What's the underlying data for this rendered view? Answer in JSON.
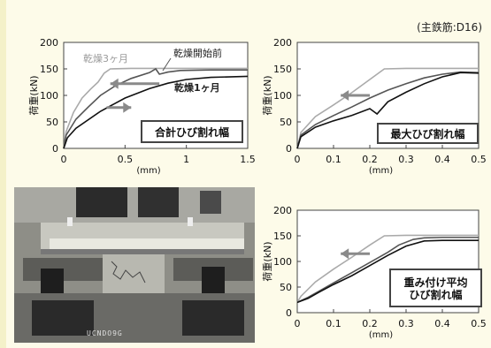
{
  "note": "(主鉄筋:D16)",
  "photo": {
    "caption": "UCNDO9G"
  },
  "colors": {
    "black": "#111111",
    "mid": "#555555",
    "light": "#aaaaaa",
    "arrow": "#8a8a8a",
    "box": "#444444"
  },
  "chart_data": [
    {
      "type": "line",
      "title": "合計ひび割れ幅",
      "xlabel": "(mm)",
      "ylabel": "荷重(kN)",
      "xlim": [
        0,
        1.5
      ],
      "ylim": [
        0,
        200
      ],
      "xticks": [
        "0",
        "0.5",
        "1",
        "1.5"
      ],
      "yticks": [
        "0",
        "50",
        "100",
        "150",
        "200"
      ],
      "series": [
        {
          "name": "乾燥3ヶ月",
          "color": "light",
          "x": [
            0,
            0.02,
            0.08,
            0.15,
            0.22,
            0.28,
            0.33,
            0.38,
            0.55,
            0.9,
            1.2,
            1.5
          ],
          "y": [
            0,
            32,
            68,
            95,
            112,
            125,
            142,
            150,
            151,
            151,
            151,
            151
          ]
        },
        {
          "name": "乾燥開始前",
          "color": "mid",
          "x": [
            0,
            0.02,
            0.1,
            0.2,
            0.3,
            0.42,
            0.55,
            0.7,
            0.75,
            0.78,
            0.85,
            0.95,
            1.2,
            1.5
          ],
          "y": [
            0,
            25,
            55,
            78,
            100,
            118,
            132,
            143,
            150,
            140,
            144,
            147,
            148,
            148
          ]
        },
        {
          "name": "乾燥1ヶ月",
          "color": "black",
          "x": [
            0,
            0.03,
            0.1,
            0.3,
            0.5,
            0.7,
            0.85,
            1.0,
            1.2,
            1.5
          ],
          "y": [
            0,
            20,
            38,
            70,
            95,
            113,
            123,
            130,
            134,
            136
          ]
        }
      ],
      "arrows": [
        {
          "from": [
            0.78,
            122
          ],
          "to": [
            0.38,
            122
          ]
        },
        {
          "from": [
            0.35,
            77
          ],
          "to": [
            0.55,
            77
          ]
        }
      ]
    },
    {
      "type": "line",
      "title": "最大ひび割れ幅",
      "xlabel": "(mm)",
      "ylabel": "荷重(kN)",
      "xlim": [
        0,
        0.5
      ],
      "ylim": [
        0,
        200
      ],
      "xticks": [
        "0",
        "0.1",
        "0.2",
        "0.3",
        "0.4",
        "0.5"
      ],
      "yticks": [
        "0",
        "50",
        "100",
        "150",
        "200"
      ],
      "series": [
        {
          "color": "light",
          "x": [
            0,
            0.01,
            0.05,
            0.1,
            0.15,
            0.2,
            0.24,
            0.3,
            0.4,
            0.5
          ],
          "y": [
            0,
            30,
            60,
            82,
            105,
            130,
            150,
            151,
            151,
            151
          ]
        },
        {
          "color": "mid",
          "x": [
            0,
            0.01,
            0.05,
            0.1,
            0.15,
            0.2,
            0.25,
            0.3,
            0.35,
            0.4,
            0.45,
            0.5
          ],
          "y": [
            0,
            25,
            45,
            62,
            78,
            95,
            110,
            122,
            133,
            140,
            144,
            143
          ]
        },
        {
          "color": "black",
          "x": [
            0,
            0.01,
            0.05,
            0.1,
            0.15,
            0.2,
            0.22,
            0.25,
            0.3,
            0.35,
            0.4,
            0.45,
            0.5
          ],
          "y": [
            0,
            22,
            40,
            52,
            62,
            75,
            65,
            88,
            106,
            122,
            135,
            143,
            142
          ]
        }
      ],
      "arrows": [
        {
          "from": [
            0.2,
            100
          ],
          "to": [
            0.12,
            100
          ]
        }
      ]
    },
    {
      "type": "line",
      "title": "重み付け平均\nひび割れ幅",
      "xlabel": "(mm)",
      "ylabel": "荷重(kN)",
      "xlim": [
        0,
        0.5
      ],
      "ylim": [
        0,
        200
      ],
      "xticks": [
        "0",
        "0.1",
        "0.2",
        "0.3",
        "0.4",
        "0.5"
      ],
      "yticks": [
        "0",
        "50",
        "100",
        "150",
        "200"
      ],
      "series": [
        {
          "color": "light",
          "x": [
            0,
            0.01,
            0.05,
            0.1,
            0.15,
            0.2,
            0.24,
            0.3,
            0.4,
            0.5
          ],
          "y": [
            20,
            32,
            60,
            85,
            108,
            132,
            150,
            151,
            151,
            151
          ]
        },
        {
          "color": "mid",
          "x": [
            0,
            0.03,
            0.06,
            0.1,
            0.15,
            0.2,
            0.25,
            0.28,
            0.32,
            0.35,
            0.4,
            0.5
          ],
          "y": [
            20,
            30,
            42,
            58,
            78,
            98,
            118,
            132,
            143,
            146,
            147,
            147
          ]
        },
        {
          "color": "black",
          "x": [
            0,
            0.03,
            0.06,
            0.1,
            0.15,
            0.2,
            0.25,
            0.3,
            0.35,
            0.4,
            0.5
          ],
          "y": [
            20,
            28,
            40,
            55,
            72,
            92,
            112,
            130,
            140,
            141,
            141
          ]
        }
      ],
      "arrows": [
        {
          "from": [
            0.2,
            115
          ],
          "to": [
            0.12,
            115
          ]
        }
      ]
    }
  ]
}
